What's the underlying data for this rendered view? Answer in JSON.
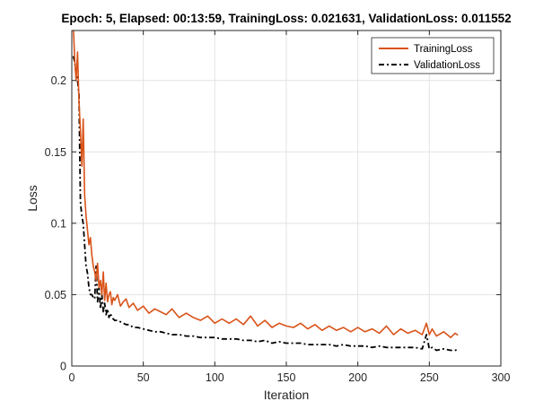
{
  "chart_data": {
    "type": "line",
    "title": "Epoch: 5, Elapsed: 00:13:59, TrainingLoss: 0.021631, ValidationLoss: 0.011552",
    "xlabel": "Iteration",
    "ylabel": "Loss",
    "xlim": [
      0,
      300
    ],
    "ylim": [
      0,
      0.235
    ],
    "xticks": [
      0,
      50,
      100,
      150,
      200,
      250,
      300
    ],
    "xtick_labels": [
      "0",
      "50",
      "100",
      "150",
      "200",
      "250",
      "300"
    ],
    "yticks": [
      0,
      0.05,
      0.1,
      0.15,
      0.2
    ],
    "ytick_labels": [
      "0",
      "0.05",
      "0.1",
      "0.15",
      "0.2"
    ],
    "grid": true,
    "legend_position": "top-right",
    "series": [
      {
        "name": "TrainingLoss",
        "color": "#D95319",
        "line_style": "solid",
        "x": [
          1,
          2,
          3,
          4,
          5,
          6,
          7,
          8,
          9,
          10,
          11,
          12,
          13,
          14,
          15,
          16,
          17,
          18,
          19,
          20,
          21,
          22,
          23,
          24,
          25,
          26,
          27,
          28,
          29,
          30,
          32,
          34,
          36,
          38,
          40,
          43,
          46,
          50,
          54,
          58,
          62,
          66,
          70,
          75,
          80,
          85,
          90,
          95,
          100,
          105,
          110,
          115,
          120,
          125,
          130,
          135,
          140,
          145,
          150,
          155,
          160,
          165,
          170,
          175,
          180,
          185,
          190,
          195,
          200,
          205,
          210,
          215,
          220,
          225,
          230,
          235,
          240,
          245,
          248,
          250,
          252,
          255,
          260,
          265,
          268,
          270
        ],
        "y": [
          0.24,
          0.215,
          0.2,
          0.22,
          0.185,
          0.165,
          0.14,
          0.173,
          0.12,
          0.105,
          0.095,
          0.085,
          0.09,
          0.078,
          0.07,
          0.066,
          0.06,
          0.072,
          0.055,
          0.06,
          0.05,
          0.066,
          0.046,
          0.058,
          0.045,
          0.05,
          0.052,
          0.043,
          0.048,
          0.046,
          0.05,
          0.042,
          0.045,
          0.047,
          0.041,
          0.044,
          0.039,
          0.042,
          0.037,
          0.04,
          0.038,
          0.036,
          0.04,
          0.034,
          0.037,
          0.034,
          0.032,
          0.035,
          0.03,
          0.033,
          0.03,
          0.033,
          0.029,
          0.035,
          0.028,
          0.032,
          0.027,
          0.03,
          0.028,
          0.027,
          0.03,
          0.026,
          0.029,
          0.025,
          0.028,
          0.025,
          0.027,
          0.024,
          0.027,
          0.024,
          0.026,
          0.023,
          0.028,
          0.022,
          0.026,
          0.023,
          0.025,
          0.022,
          0.03,
          0.022,
          0.026,
          0.021,
          0.024,
          0.02,
          0.023,
          0.021631
        ]
      },
      {
        "name": "ValidationLoss",
        "color": "#000000",
        "line_style": "dash-dot",
        "x": [
          1,
          2,
          3,
          4,
          5,
          6,
          7,
          8,
          9,
          10,
          11,
          12,
          13,
          14,
          15,
          16,
          17,
          18,
          19,
          20,
          21,
          22,
          23,
          24,
          25,
          26,
          27,
          28,
          29,
          30,
          32,
          34,
          36,
          38,
          40,
          43,
          46,
          50,
          54,
          58,
          62,
          66,
          70,
          75,
          80,
          85,
          90,
          95,
          100,
          105,
          110,
          115,
          120,
          125,
          130,
          135,
          140,
          145,
          150,
          155,
          160,
          165,
          170,
          175,
          180,
          185,
          190,
          195,
          200,
          205,
          210,
          215,
          220,
          225,
          230,
          235,
          240,
          245,
          248,
          250,
          252,
          255,
          260,
          265,
          268,
          270
        ],
        "y": [
          0.217,
          0.213,
          0.205,
          0.2,
          0.19,
          0.115,
          0.105,
          0.1,
          0.085,
          0.07,
          0.065,
          0.055,
          0.05,
          0.05,
          0.048,
          0.047,
          0.07,
          0.045,
          0.055,
          0.04,
          0.05,
          0.038,
          0.044,
          0.036,
          0.04,
          0.034,
          0.037,
          0.034,
          0.033,
          0.032,
          0.032,
          0.031,
          0.03,
          0.029,
          0.029,
          0.027,
          0.027,
          0.026,
          0.025,
          0.024,
          0.024,
          0.023,
          0.022,
          0.022,
          0.021,
          0.021,
          0.02,
          0.02,
          0.02,
          0.019,
          0.019,
          0.019,
          0.018,
          0.018,
          0.017,
          0.018,
          0.016,
          0.017,
          0.016,
          0.016,
          0.016,
          0.015,
          0.015,
          0.015,
          0.015,
          0.014,
          0.015,
          0.014,
          0.014,
          0.014,
          0.013,
          0.014,
          0.013,
          0.013,
          0.013,
          0.013,
          0.013,
          0.012,
          0.022,
          0.012,
          0.013,
          0.011,
          0.012,
          0.011,
          0.011,
          0.011552
        ]
      }
    ]
  }
}
